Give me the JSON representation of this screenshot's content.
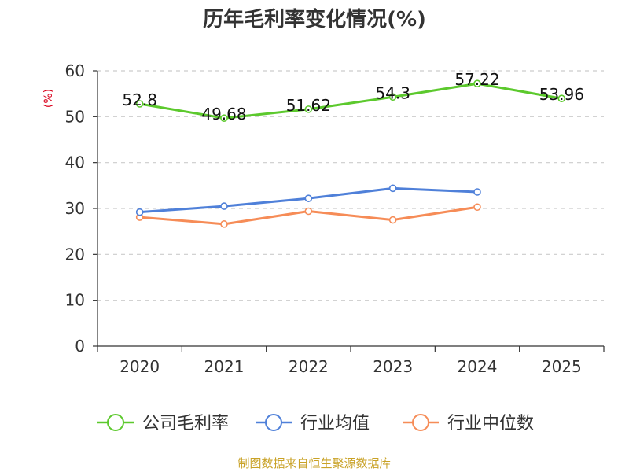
{
  "chart_data": {
    "type": "line",
    "title": "历年毛利率变化情况(%)",
    "ylabel": "(%)",
    "categories": [
      "2020",
      "2021",
      "2022",
      "2023",
      "2024",
      "2025"
    ],
    "ylim": [
      0,
      60
    ],
    "yticks": [
      0,
      10,
      20,
      30,
      40,
      50,
      60
    ],
    "grid": true,
    "legend_position": "bottom",
    "series": [
      {
        "name": "公司毛利率",
        "color": "#5cc92d",
        "values": [
          52.8,
          49.68,
          51.62,
          54.3,
          57.22,
          53.96
        ],
        "labels": [
          "52.8",
          "49.68",
          "51.62",
          "54.3",
          "57.22",
          "53.96"
        ]
      },
      {
        "name": "行业均值",
        "color": "#4f80d9",
        "values": [
          29.2,
          30.5,
          32.2,
          34.4,
          33.6,
          null
        ]
      },
      {
        "name": "行业中位数",
        "color": "#f68c57",
        "values": [
          28.1,
          26.6,
          29.4,
          27.5,
          30.3,
          null
        ]
      }
    ]
  },
  "colors": {
    "unit": "#d9001b",
    "source": "#c9a227",
    "axis": "#333333",
    "grid": "#cccccc"
  },
  "source": "制图数据来自恒生聚源数据库"
}
